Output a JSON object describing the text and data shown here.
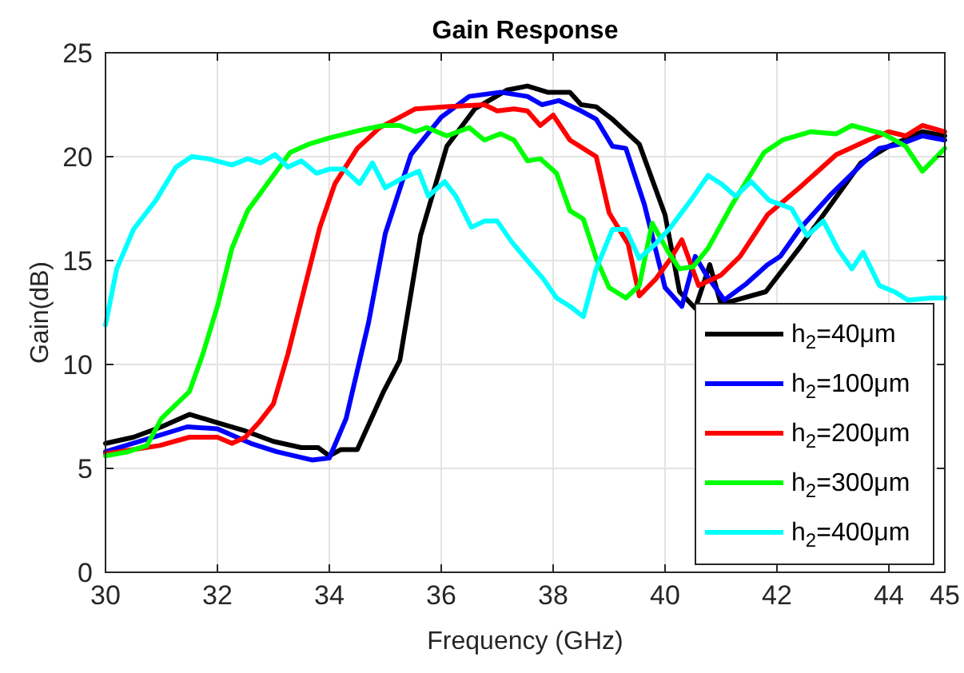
{
  "chart_data": {
    "type": "line",
    "title": "Gain Response",
    "xlabel": "Frequency (GHz)",
    "ylabel": "Gain(dB)",
    "xlim": [
      30,
      45
    ],
    "ylim": [
      0,
      25
    ],
    "xticks": [
      30,
      32,
      34,
      36,
      38,
      40,
      42,
      44,
      45
    ],
    "yticks": [
      0,
      5,
      10,
      15,
      20,
      25
    ],
    "grid": true,
    "legend": "bottom right",
    "line_style": "solid",
    "marker": "none",
    "series": [
      {
        "name": "h$_{2}$=40μm",
        "color": "#000000",
        "x": [
          30,
          30.5,
          31,
          31.5,
          32,
          32.5,
          33,
          33.5,
          33.8,
          34,
          34.2,
          34.5,
          34.97,
          35.26,
          35.63,
          36.1,
          36.6,
          37.17,
          37.54,
          37.9,
          38.3,
          38.5,
          38.77,
          39.06,
          39.54,
          40.0,
          40.26,
          40.54,
          40.8,
          41.0,
          41.8,
          42.4,
          43.5,
          44.0,
          44.6,
          45
        ],
        "values": [
          6.2,
          6.5,
          7.0,
          7.6,
          7.2,
          6.8,
          6.3,
          6.0,
          6.0,
          5.6,
          5.9,
          5.9,
          8.7,
          10.2,
          16.2,
          20.5,
          22.3,
          23.2,
          23.4,
          23.1,
          23.1,
          22.5,
          22.4,
          21.8,
          20.6,
          17.2,
          13.5,
          12.7,
          14.8,
          12.9,
          13.5,
          15.6,
          19.7,
          20.5,
          21.2,
          21.0
        ]
      },
      {
        "name": "h$_{2}$=100μm",
        "color": "#0000ff",
        "x": [
          30,
          31.46,
          32,
          32.6,
          33.06,
          33.7,
          34,
          34.3,
          34.7,
          35.0,
          35.46,
          36.0,
          36.5,
          37.06,
          37.54,
          37.8,
          38.1,
          38.5,
          38.77,
          39.06,
          39.3,
          39.63,
          39.9,
          40.0,
          40.3,
          40.54,
          40.74,
          41.06,
          41.46,
          41.83,
          42.06,
          42.4,
          42.97,
          43.54,
          43.83,
          44.2,
          44.6,
          45
        ],
        "values": [
          5.8,
          7.0,
          6.9,
          6.2,
          5.8,
          5.4,
          5.5,
          7.4,
          12,
          16.3,
          20.1,
          21.9,
          22.9,
          23.1,
          22.9,
          22.5,
          22.7,
          22.2,
          21.8,
          20.5,
          20.4,
          17.7,
          14.8,
          13.7,
          12.8,
          15.2,
          14.3,
          13.1,
          13.9,
          14.8,
          15.2,
          16.5,
          18.2,
          19.7,
          20.4,
          20.6,
          21.0,
          20.8
        ]
      },
      {
        "name": "h$_{2}$=200μm",
        "color": "#ff0000",
        "x": [
          30,
          30.97,
          31.5,
          32,
          32.26,
          32.5,
          32.74,
          33.0,
          33.26,
          33.54,
          33.83,
          34.1,
          34.5,
          34.9,
          35.26,
          35.54,
          36.1,
          36.77,
          37.0,
          37.3,
          37.54,
          37.77,
          38.0,
          38.3,
          38.77,
          39.0,
          39.34,
          39.54,
          39.83,
          40.1,
          40.3,
          40.6,
          41.0,
          41.34,
          41.83,
          42.4,
          43.06,
          43.63,
          44.0,
          44.3,
          44.6,
          45
        ],
        "values": [
          5.7,
          6.1,
          6.5,
          6.5,
          6.2,
          6.5,
          7.2,
          8.1,
          10.5,
          13.5,
          16.6,
          18.7,
          20.4,
          21.4,
          21.9,
          22.3,
          22.4,
          22.5,
          22.2,
          22.3,
          22.2,
          21.5,
          22.0,
          20.8,
          20.0,
          17.3,
          15.8,
          13.3,
          14.1,
          15.1,
          16.0,
          13.8,
          14.3,
          15.2,
          17.2,
          18.5,
          20.1,
          20.8,
          21.2,
          21.0,
          21.5,
          21.2
        ]
      },
      {
        "name": "h$_{2}$=300μm",
        "color": "#00ff00",
        "x": [
          30,
          30.4,
          30.74,
          31.0,
          31.5,
          31.74,
          32.0,
          32.26,
          32.54,
          33.0,
          33.3,
          33.63,
          34.0,
          34.3,
          34.6,
          34.97,
          35.26,
          35.54,
          35.74,
          36.1,
          36.5,
          36.77,
          37.06,
          37.3,
          37.54,
          37.77,
          38.06,
          38.3,
          38.54,
          38.77,
          39.0,
          39.3,
          39.54,
          39.77,
          40.06,
          40.26,
          40.5,
          40.77,
          41.2,
          41.77,
          42.1,
          42.6,
          43.06,
          43.34,
          43.9,
          44.3,
          44.6,
          45
        ],
        "values": [
          5.6,
          5.8,
          6.1,
          7.4,
          8.7,
          10.5,
          12.8,
          15.6,
          17.4,
          19.1,
          20.2,
          20.6,
          20.9,
          21.1,
          21.3,
          21.5,
          21.5,
          21.2,
          21.4,
          21.0,
          21.4,
          20.8,
          21.1,
          20.8,
          19.8,
          19.9,
          19.2,
          17.4,
          17.0,
          15.1,
          13.7,
          13.2,
          13.8,
          16.8,
          15.4,
          14.6,
          14.7,
          15.6,
          17.7,
          20.2,
          20.8,
          21.2,
          21.1,
          21.5,
          21.1,
          20.5,
          19.3,
          20.4
        ]
      },
      {
        "name": "h$_{2}$=400μm",
        "color": "#00ffff",
        "x": [
          30,
          30.2,
          30.5,
          30.9,
          31.26,
          31.54,
          31.83,
          32.26,
          32.54,
          32.77,
          33.03,
          33.26,
          33.5,
          33.77,
          34.0,
          34.26,
          34.54,
          34.77,
          35.0,
          35.26,
          35.6,
          35.77,
          36.06,
          36.26,
          36.54,
          36.77,
          37.0,
          37.26,
          37.54,
          37.83,
          38.06,
          38.3,
          38.54,
          38.77,
          39.06,
          39.3,
          39.54,
          39.83,
          40.1,
          40.46,
          40.77,
          41.0,
          41.26,
          41.54,
          41.86,
          42.26,
          42.54,
          42.83,
          43.1,
          43.34,
          43.54,
          43.83,
          44.1,
          44.34,
          44.77,
          45
        ],
        "values": [
          11.9,
          14.6,
          16.5,
          17.9,
          19.5,
          20.0,
          19.9,
          19.6,
          19.9,
          19.7,
          20.1,
          19.5,
          19.8,
          19.2,
          19.4,
          19.4,
          18.7,
          19.7,
          18.5,
          18.9,
          19.3,
          18.1,
          18.8,
          18.1,
          16.6,
          16.9,
          16.9,
          15.9,
          15.0,
          14.1,
          13.2,
          12.8,
          12.3,
          14.6,
          16.5,
          16.5,
          15.1,
          15.8,
          16.6,
          17.9,
          19.1,
          18.7,
          18.1,
          18.8,
          17.9,
          17.5,
          16.2,
          16.9,
          15.5,
          14.6,
          15.4,
          13.8,
          13.5,
          13.1,
          13.2,
          13.2
        ]
      }
    ]
  }
}
